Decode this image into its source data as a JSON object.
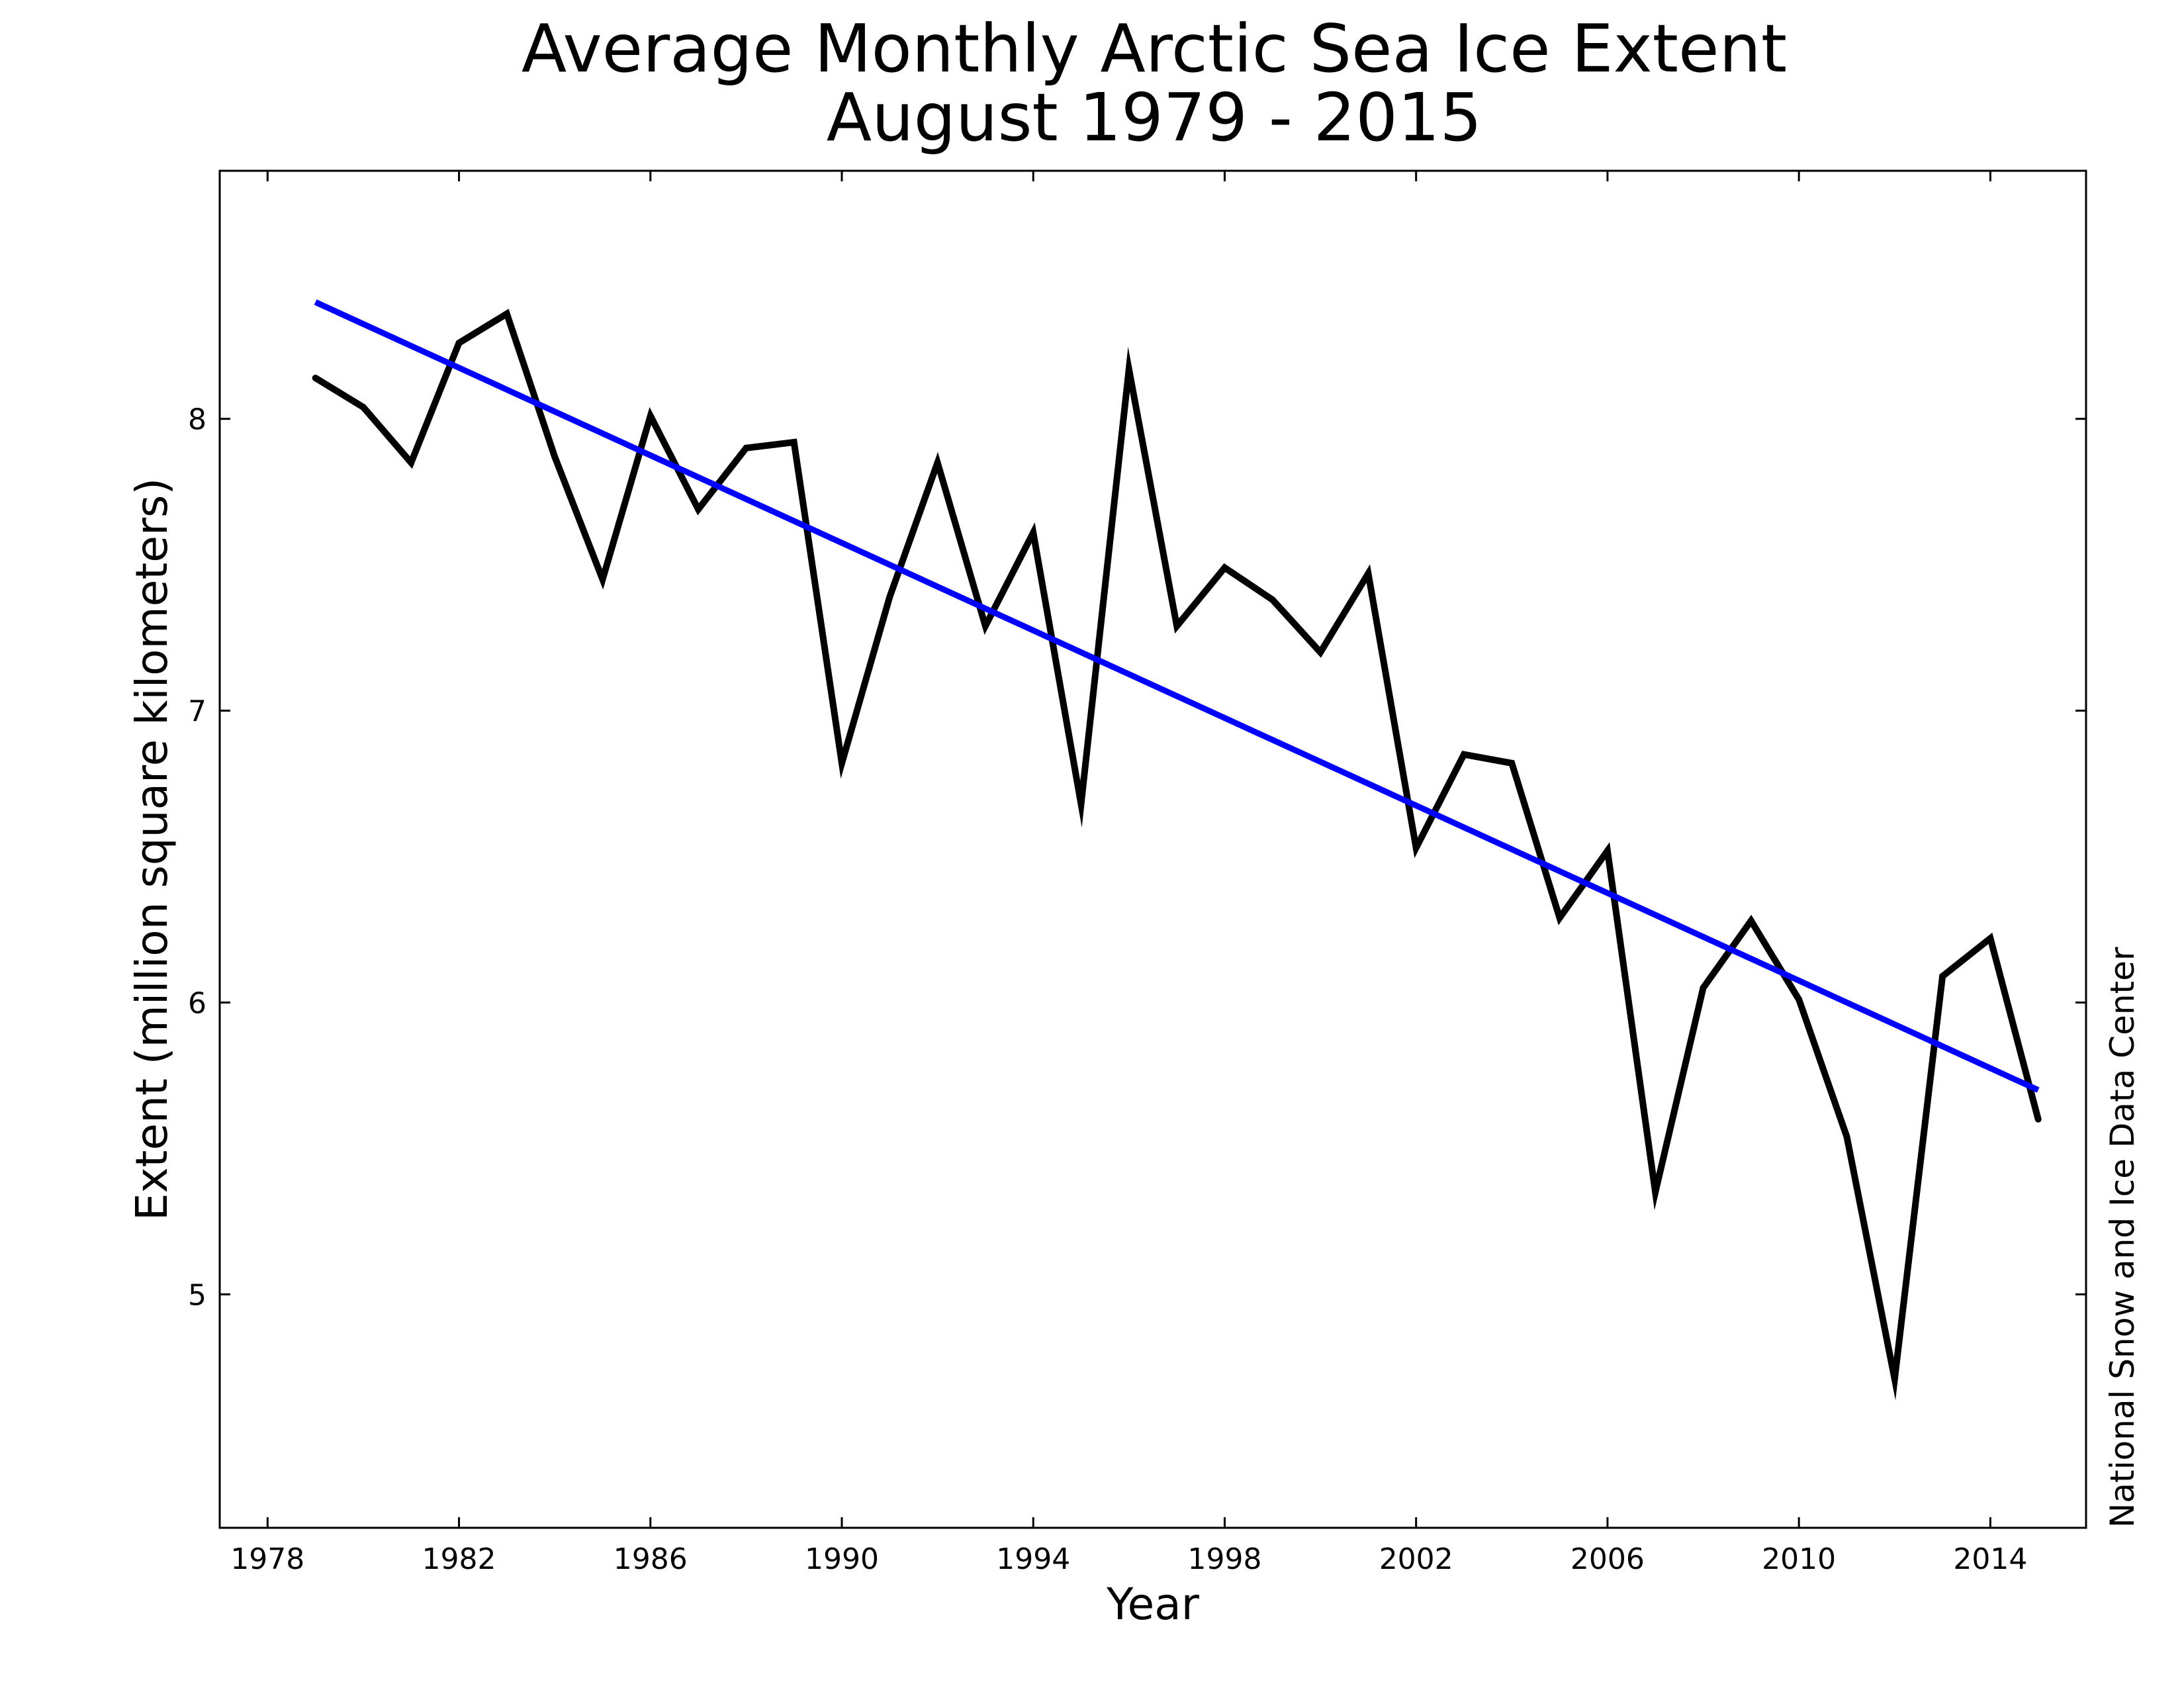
{
  "chart_data": {
    "type": "line",
    "title": "Average Monthly Arctic Sea Ice Extent",
    "subtitle": "August 1979 - 2015",
    "xlabel": "Year",
    "ylabel": "Extent (million square kilometers)",
    "credit": "National Snow and Ice Data Center",
    "xlim": [
      1977,
      2016
    ],
    "ylim": [
      4.2,
      8.85
    ],
    "x_ticks": [
      1978,
      1982,
      1986,
      1990,
      1994,
      1998,
      2002,
      2006,
      2010,
      2014
    ],
    "x_tick_labels": [
      "1978",
      "1982",
      "1986",
      "1990",
      "1994",
      "1998",
      "2002",
      "2006",
      "2010",
      "2014"
    ],
    "y_ticks": [
      5,
      6,
      7,
      8
    ],
    "y_tick_labels": [
      "5",
      "6",
      "7",
      "8"
    ],
    "grid": false,
    "x": [
      1979,
      1980,
      1981,
      1982,
      1983,
      1984,
      1985,
      1986,
      1987,
      1988,
      1989,
      1990,
      1991,
      1992,
      1993,
      1994,
      1995,
      1996,
      1997,
      1998,
      1999,
      2000,
      2001,
      2002,
      2003,
      2004,
      2005,
      2006,
      2007,
      2008,
      2009,
      2010,
      2011,
      2012,
      2013,
      2014,
      2015
    ],
    "series": [
      {
        "name": "Monthly extent",
        "color": "#000000",
        "values": [
          8.14,
          8.04,
          7.85,
          8.26,
          8.36,
          7.87,
          7.45,
          8.01,
          7.69,
          7.9,
          7.92,
          6.82,
          7.39,
          7.85,
          7.29,
          7.61,
          6.68,
          8.17,
          7.29,
          7.49,
          7.38,
          7.2,
          7.47,
          6.53,
          6.85,
          6.82,
          6.29,
          6.52,
          5.35,
          6.05,
          6.28,
          6.01,
          5.54,
          4.71,
          6.09,
          6.22,
          5.6
        ]
      },
      {
        "name": "Linear trend",
        "color": "#0000ff",
        "x": [
          1979,
          2015
        ],
        "values": [
          8.4,
          5.7
        ]
      }
    ]
  }
}
